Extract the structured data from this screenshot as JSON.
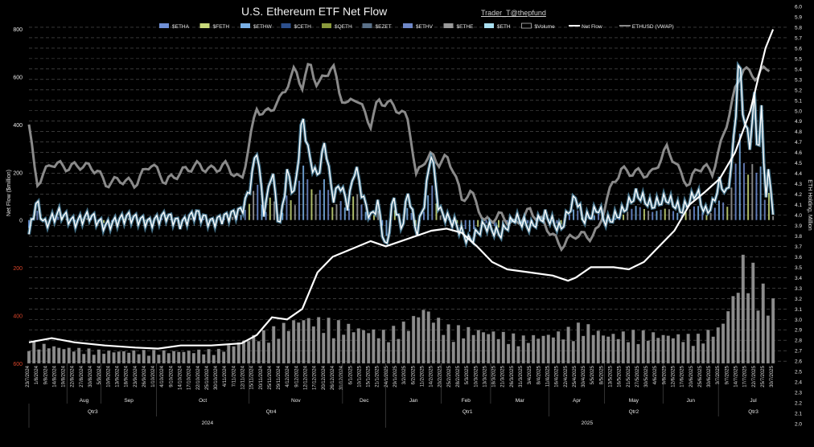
{
  "title": "U.S. Ethereum ETF Net Flow",
  "credit": "Trader_T@thepfund",
  "legend": [
    {
      "label": "$ETHA",
      "color": "#6f8fd6",
      "kind": "bar"
    },
    {
      "label": "$FETH",
      "color": "#c9d97a",
      "kind": "bar"
    },
    {
      "label": "$ETHW",
      "color": "#7ab0e6",
      "kind": "bar"
    },
    {
      "label": "$CETH",
      "color": "#2c4f8c",
      "kind": "bar"
    },
    {
      "label": "$QETH",
      "color": "#8a9a3c",
      "kind": "bar"
    },
    {
      "label": "$EZET",
      "color": "#5a7088",
      "kind": "bar"
    },
    {
      "label": "$ETHV",
      "color": "#6f88c8",
      "kind": "bar"
    },
    {
      "label": "$ETHE",
      "color": "#9a9a9a",
      "kind": "bar"
    },
    {
      "label": "$ETH",
      "color": "#a9dff0",
      "kind": "bar"
    },
    {
      "label": "$Volume",
      "color": "#000000",
      "kind": "box"
    },
    {
      "label": "Net Flow",
      "color": "#ffffff",
      "kind": "line"
    },
    {
      "label": "ETHUSD (VWAP)",
      "color": "#8a8a8a",
      "kind": "line"
    }
  ],
  "axes": {
    "left_label": "Net Flow ($million)",
    "right_label": "ETH Holding, Million",
    "left_ticks": [
      {
        "label": "800",
        "color": "#e6e6e6"
      },
      {
        "label": "600",
        "color": "#e6e6e6"
      },
      {
        "label": "400",
        "color": "#e6e6e6"
      },
      {
        "label": "200",
        "color": "#e6e6e6"
      },
      {
        "label": "0",
        "color": "#e6e6e6"
      },
      {
        "label": "200",
        "color": "#d9442a"
      },
      {
        "label": "400",
        "color": "#d9442a"
      },
      {
        "label": "600",
        "color": "#d9442a"
      }
    ],
    "right_ticks": [
      "6.0",
      "5.9",
      "5.8",
      "5.7",
      "5.6",
      "5.5",
      "5.4",
      "5.3",
      "5.2",
      "5.1",
      "5.0",
      "4.9",
      "4.8",
      "4.7",
      "4.6",
      "4.5",
      "4.4",
      "4.3",
      "4.2",
      "4.1",
      "4.0",
      "3.9",
      "3.8",
      "3.7",
      "3.6",
      "3.5",
      "3.4",
      "3.3",
      "3.2",
      "3.1",
      "3.0",
      "2.9",
      "2.8",
      "2.7",
      "2.6",
      "2.5",
      "2.4",
      "2.3",
      "2.2",
      "2.1",
      "2.0"
    ]
  },
  "chart_data": {
    "type": "bar",
    "x_dates": [
      "23/7/2024",
      "1/8/2024",
      "9/8/2024",
      "14/8/2024",
      "19/8/2024",
      "22/8/2024",
      "27/8/2024",
      "30/8/2024",
      "5/9/2024",
      "10/9/2024",
      "13/9/2024",
      "18/9/2024",
      "23/9/2024",
      "26/9/2024",
      "1/10/2024",
      "4/10/2024",
      "9/10/2024",
      "14/10/2024",
      "17/10/2024",
      "22/10/2024",
      "25/10/2024",
      "30/10/2024",
      "4/11/2024",
      "7/11/2024",
      "12/11/2024",
      "15/11/2024",
      "20/11/2024",
      "25/11/2024",
      "29/11/2024",
      "4/12/2024",
      "9/12/2024",
      "12/12/2024",
      "17/12/2024",
      "20/12/2024",
      "26/12/2024",
      "31/12/2024",
      "6/1/2025",
      "10/1/2025",
      "15/1/2025",
      "21/1/2025",
      "24/1/2025",
      "29/1/2025",
      "3/2/2025",
      "6/2/2025",
      "11/2/2025",
      "14/2/2025",
      "20/2/2025",
      "25/2/2025",
      "28/2/2025",
      "5/3/2025",
      "10/3/2025",
      "13/3/2025",
      "18/3/2025",
      "21/3/2025",
      "26/3/2025",
      "31/3/2025",
      "3/4/2025",
      "8/4/2025",
      "11/4/2025",
      "16/4/2025",
      "22/4/2025",
      "25/4/2025",
      "30/4/2025",
      "5/5/2025",
      "8/5/2025",
      "13/5/2025",
      "16/5/2025",
      "21/5/2025",
      "27/5/2025",
      "30/5/2025",
      "4/6/2025",
      "9/6/2025",
      "12/6/2025",
      "17/6/2025",
      "20/6/2025",
      "25/6/2025",
      "30/6/2025",
      "3/7/2025",
      "9/7/2025",
      "14/7/2025",
      "17/7/2025",
      "22/7/2025",
      "25/7/2025",
      "30/7/2025"
    ],
    "months": [
      {
        "label": "Aug",
        "start": 0.05,
        "end": 0.095
      },
      {
        "label": "Sep",
        "start": 0.095,
        "end": 0.168
      },
      {
        "label": "Oct",
        "start": 0.168,
        "end": 0.29
      },
      {
        "label": "Nov",
        "start": 0.29,
        "end": 0.413
      },
      {
        "label": "Dec",
        "start": 0.413,
        "end": 0.47
      },
      {
        "label": "Jan",
        "start": 0.47,
        "end": 0.543
      },
      {
        "label": "Feb",
        "start": 0.543,
        "end": 0.608
      },
      {
        "label": "Mar",
        "start": 0.608,
        "end": 0.685
      },
      {
        "label": "Apr",
        "start": 0.685,
        "end": 0.758
      },
      {
        "label": "May",
        "start": 0.758,
        "end": 0.835
      },
      {
        "label": "Jun",
        "start": 0.835,
        "end": 0.908
      },
      {
        "label": "Jul",
        "start": 0.908,
        "end": 1.0
      }
    ],
    "quarters": [
      {
        "label": "Qtr3",
        "start": 0.0,
        "end": 0.168
      },
      {
        "label": "Qtr4",
        "start": 0.168,
        "end": 0.47
      },
      {
        "label": "Qtr1",
        "start": 0.47,
        "end": 0.685
      },
      {
        "label": "Qtr2",
        "start": 0.685,
        "end": 0.908
      },
      {
        "label": "Qtr3",
        "start": 0.908,
        "end": 1.0
      }
    ],
    "years": [
      {
        "label": "2024",
        "start": 0.0,
        "end": 0.47
      },
      {
        "label": "2025",
        "start": 0.47,
        "end": 1.0
      }
    ],
    "net_flow_ylim": [
      -600,
      800
    ],
    "eth_holding_ylim": [
      2.0,
      6.0
    ],
    "net_flow_keypoints": [
      [
        0.0,
        -60
      ],
      [
        0.01,
        80
      ],
      [
        0.02,
        -20
      ],
      [
        0.04,
        30
      ],
      [
        0.06,
        -10
      ],
      [
        0.08,
        20
      ],
      [
        0.1,
        -25
      ],
      [
        0.13,
        15
      ],
      [
        0.16,
        -10
      ],
      [
        0.18,
        20
      ],
      [
        0.2,
        -15
      ],
      [
        0.22,
        30
      ],
      [
        0.24,
        -10
      ],
      [
        0.26,
        15
      ],
      [
        0.28,
        40
      ],
      [
        0.29,
        120
      ],
      [
        0.3,
        300
      ],
      [
        0.31,
        20
      ],
      [
        0.32,
        220
      ],
      [
        0.33,
        -40
      ],
      [
        0.34,
        200
      ],
      [
        0.35,
        100
      ],
      [
        0.36,
        440
      ],
      [
        0.37,
        250
      ],
      [
        0.38,
        180
      ],
      [
        0.39,
        330
      ],
      [
        0.4,
        90
      ],
      [
        0.41,
        150
      ],
      [
        0.42,
        60
      ],
      [
        0.43,
        230
      ],
      [
        0.44,
        90
      ],
      [
        0.45,
        10
      ],
      [
        0.46,
        70
      ],
      [
        0.47,
        -140
      ],
      [
        0.48,
        100
      ],
      [
        0.49,
        -40
      ],
      [
        0.5,
        120
      ],
      [
        0.51,
        -60
      ],
      [
        0.52,
        60
      ],
      [
        0.53,
        290
      ],
      [
        0.54,
        40
      ],
      [
        0.55,
        10
      ],
      [
        0.56,
        -10
      ],
      [
        0.58,
        -90
      ],
      [
        0.6,
        -20
      ],
      [
        0.62,
        -60
      ],
      [
        0.64,
        10
      ],
      [
        0.66,
        -30
      ],
      [
        0.68,
        20
      ],
      [
        0.7,
        -40
      ],
      [
        0.72,
        100
      ],
      [
        0.73,
        0
      ],
      [
        0.74,
        20
      ],
      [
        0.75,
        50
      ],
      [
        0.76,
        -10
      ],
      [
        0.78,
        30
      ],
      [
        0.8,
        110
      ],
      [
        0.82,
        60
      ],
      [
        0.84,
        90
      ],
      [
        0.86,
        40
      ],
      [
        0.87,
        80
      ],
      [
        0.88,
        120
      ],
      [
        0.89,
        30
      ],
      [
        0.9,
        60
      ],
      [
        0.91,
        160
      ],
      [
        0.92,
        100
      ],
      [
        0.93,
        380
      ],
      [
        0.935,
        720
      ],
      [
        0.94,
        460
      ],
      [
        0.95,
        300
      ],
      [
        0.955,
        540
      ],
      [
        0.96,
        250
      ],
      [
        0.965,
        470
      ],
      [
        0.97,
        80
      ],
      [
        0.975,
        220
      ],
      [
        0.98,
        30
      ]
    ],
    "ethusd_keypoints": [
      [
        0.0,
        400
      ],
      [
        0.01,
        150
      ],
      [
        0.03,
        240
      ],
      [
        0.05,
        220
      ],
      [
        0.07,
        230
      ],
      [
        0.09,
        210
      ],
      [
        0.1,
        150
      ],
      [
        0.12,
        170
      ],
      [
        0.14,
        150
      ],
      [
        0.16,
        240
      ],
      [
        0.18,
        160
      ],
      [
        0.2,
        200
      ],
      [
        0.22,
        230
      ],
      [
        0.24,
        210
      ],
      [
        0.26,
        230
      ],
      [
        0.28,
        160
      ],
      [
        0.29,
        320
      ],
      [
        0.3,
        470
      ],
      [
        0.31,
        440
      ],
      [
        0.33,
        500
      ],
      [
        0.35,
        630
      ],
      [
        0.36,
        560
      ],
      [
        0.37,
        660
      ],
      [
        0.38,
        560
      ],
      [
        0.4,
        650
      ],
      [
        0.41,
        520
      ],
      [
        0.42,
        480
      ],
      [
        0.43,
        520
      ],
      [
        0.45,
        400
      ],
      [
        0.46,
        500
      ],
      [
        0.48,
        480
      ],
      [
        0.5,
        420
      ],
      [
        0.51,
        180
      ],
      [
        0.52,
        250
      ],
      [
        0.53,
        270
      ],
      [
        0.54,
        240
      ],
      [
        0.55,
        260
      ],
      [
        0.56,
        210
      ],
      [
        0.57,
        80
      ],
      [
        0.58,
        120
      ],
      [
        0.59,
        70
      ],
      [
        0.6,
        -10
      ],
      [
        0.62,
        20
      ],
      [
        0.64,
        -20
      ],
      [
        0.66,
        40
      ],
      [
        0.68,
        -20
      ],
      [
        0.7,
        -110
      ],
      [
        0.72,
        -60
      ],
      [
        0.74,
        -70
      ],
      [
        0.75,
        -40
      ],
      [
        0.76,
        80
      ],
      [
        0.77,
        160
      ],
      [
        0.78,
        210
      ],
      [
        0.79,
        200
      ],
      [
        0.8,
        200
      ],
      [
        0.82,
        190
      ],
      [
        0.84,
        300
      ],
      [
        0.85,
        250
      ],
      [
        0.86,
        180
      ],
      [
        0.87,
        150
      ],
      [
        0.88,
        220
      ],
      [
        0.89,
        220
      ],
      [
        0.9,
        200
      ],
      [
        0.91,
        300
      ],
      [
        0.92,
        420
      ],
      [
        0.93,
        540
      ],
      [
        0.94,
        640
      ],
      [
        0.95,
        610
      ],
      [
        0.96,
        600
      ],
      [
        0.97,
        640
      ]
    ],
    "eth_holding_keypoints": [
      [
        0.0,
        2.78
      ],
      [
        0.03,
        2.82
      ],
      [
        0.06,
        2.78
      ],
      [
        0.1,
        2.75
      ],
      [
        0.14,
        2.73
      ],
      [
        0.17,
        2.72
      ],
      [
        0.2,
        2.75
      ],
      [
        0.24,
        2.75
      ],
      [
        0.28,
        2.77
      ],
      [
        0.3,
        2.85
      ],
      [
        0.32,
        3.02
      ],
      [
        0.34,
        3.0
      ],
      [
        0.36,
        3.1
      ],
      [
        0.38,
        3.45
      ],
      [
        0.4,
        3.6
      ],
      [
        0.42,
        3.66
      ],
      [
        0.45,
        3.75
      ],
      [
        0.47,
        3.7
      ],
      [
        0.49,
        3.75
      ],
      [
        0.51,
        3.8
      ],
      [
        0.53,
        3.85
      ],
      [
        0.55,
        3.87
      ],
      [
        0.57,
        3.83
      ],
      [
        0.59,
        3.7
      ],
      [
        0.61,
        3.55
      ],
      [
        0.63,
        3.48
      ],
      [
        0.66,
        3.45
      ],
      [
        0.69,
        3.42
      ],
      [
        0.71,
        3.37
      ],
      [
        0.72,
        3.4
      ],
      [
        0.74,
        3.5
      ],
      [
        0.77,
        3.5
      ],
      [
        0.79,
        3.48
      ],
      [
        0.81,
        3.55
      ],
      [
        0.83,
        3.7
      ],
      [
        0.85,
        3.85
      ],
      [
        0.87,
        4.1
      ],
      [
        0.89,
        4.22
      ],
      [
        0.91,
        4.35
      ],
      [
        0.93,
        4.6
      ],
      [
        0.95,
        5.0
      ],
      [
        0.97,
        5.6
      ],
      [
        0.98,
        5.78
      ]
    ],
    "volume_keypoints": [
      [
        0.0,
        0.2
      ],
      [
        0.05,
        0.15
      ],
      [
        0.1,
        0.12
      ],
      [
        0.15,
        0.12
      ],
      [
        0.2,
        0.12
      ],
      [
        0.25,
        0.13
      ],
      [
        0.29,
        0.25
      ],
      [
        0.33,
        0.35
      ],
      [
        0.36,
        0.45
      ],
      [
        0.4,
        0.4
      ],
      [
        0.43,
        0.35
      ],
      [
        0.47,
        0.3
      ],
      [
        0.5,
        0.4
      ],
      [
        0.52,
        0.55
      ],
      [
        0.55,
        0.35
      ],
      [
        0.6,
        0.32
      ],
      [
        0.65,
        0.25
      ],
      [
        0.7,
        0.3
      ],
      [
        0.73,
        0.38
      ],
      [
        0.76,
        0.28
      ],
      [
        0.8,
        0.3
      ],
      [
        0.84,
        0.28
      ],
      [
        0.88,
        0.26
      ],
      [
        0.91,
        0.35
      ],
      [
        0.93,
        0.7
      ],
      [
        0.94,
        1.0
      ],
      [
        0.96,
        0.85
      ],
      [
        0.97,
        0.65
      ],
      [
        0.98,
        0.6
      ]
    ]
  }
}
